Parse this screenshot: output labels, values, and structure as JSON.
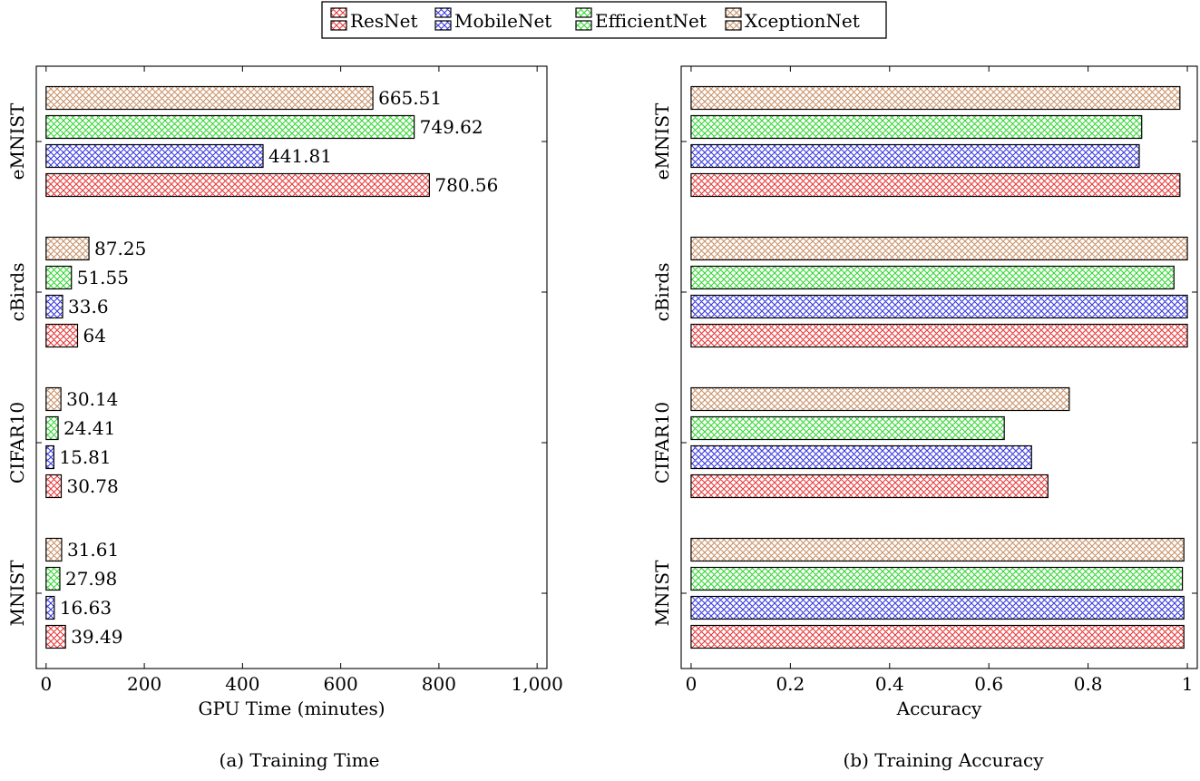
{
  "legend": {
    "entries": [
      {
        "name": "ResNet",
        "color": "#e83a3a"
      },
      {
        "name": "MobileNet",
        "color": "#3a3ae0"
      },
      {
        "name": "EfficientNet",
        "color": "#36d636"
      },
      {
        "name": "XceptionNet",
        "color": "#c8936a"
      }
    ],
    "placement": "top-center"
  },
  "captions": {
    "left": "(a) Training Time",
    "right": "(b) Training Accuracy"
  },
  "chart_data": [
    {
      "type": "bar",
      "orientation": "horizontal",
      "pattern": "crosshatch",
      "categories": [
        "MNIST",
        "CIFAR10",
        "cBirds",
        "eMNIST"
      ],
      "series": [
        {
          "name": "ResNet",
          "values": [
            39.49,
            30.78,
            64,
            780.56
          ]
        },
        {
          "name": "MobileNet",
          "values": [
            16.63,
            15.81,
            33.6,
            441.81
          ]
        },
        {
          "name": "EfficientNet",
          "values": [
            27.98,
            24.41,
            51.55,
            749.62
          ]
        },
        {
          "name": "XceptionNet",
          "values": [
            31.61,
            30.14,
            87.25,
            665.51
          ]
        }
      ],
      "data_labels": [
        [
          "39.49",
          "30.78",
          "64",
          "780.56"
        ],
        [
          "16.63",
          "15.81",
          "33.6",
          "441.81"
        ],
        [
          "27.98",
          "24.41",
          "51.55",
          "749.62"
        ],
        [
          "31.61",
          "30.14",
          "87.25",
          "665.51"
        ]
      ],
      "xlabel": "GPU Time (minutes)",
      "ylabel": "",
      "xlim": [
        -20,
        1020
      ],
      "xticks": [
        0,
        200,
        400,
        600,
        800,
        1000
      ],
      "xtick_labels": [
        "0",
        "200",
        "400",
        "600",
        "800",
        "1,000"
      ],
      "grid": false
    },
    {
      "type": "bar",
      "orientation": "horizontal",
      "pattern": "crosshatch",
      "categories": [
        "MNIST",
        "CIFAR10",
        "cBirds",
        "eMNIST"
      ],
      "series": [
        {
          "name": "ResNet",
          "values": [
            0.993,
            0.719,
            1.0,
            0.985
          ]
        },
        {
          "name": "MobileNet",
          "values": [
            0.993,
            0.686,
            1.0,
            0.903
          ]
        },
        {
          "name": "EfficientNet",
          "values": [
            0.99,
            0.631,
            0.973,
            0.908
          ]
        },
        {
          "name": "XceptionNet",
          "values": [
            0.993,
            0.762,
            1.0,
            0.985
          ]
        }
      ],
      "xlabel": "Accuracy",
      "ylabel": "",
      "xlim": [
        -0.02,
        1.02
      ],
      "xticks": [
        0,
        0.2,
        0.4,
        0.6,
        0.8,
        1
      ],
      "xtick_labels": [
        "0",
        "0.2",
        "0.4",
        "0.6",
        "0.8",
        "1"
      ],
      "grid": false
    }
  ]
}
